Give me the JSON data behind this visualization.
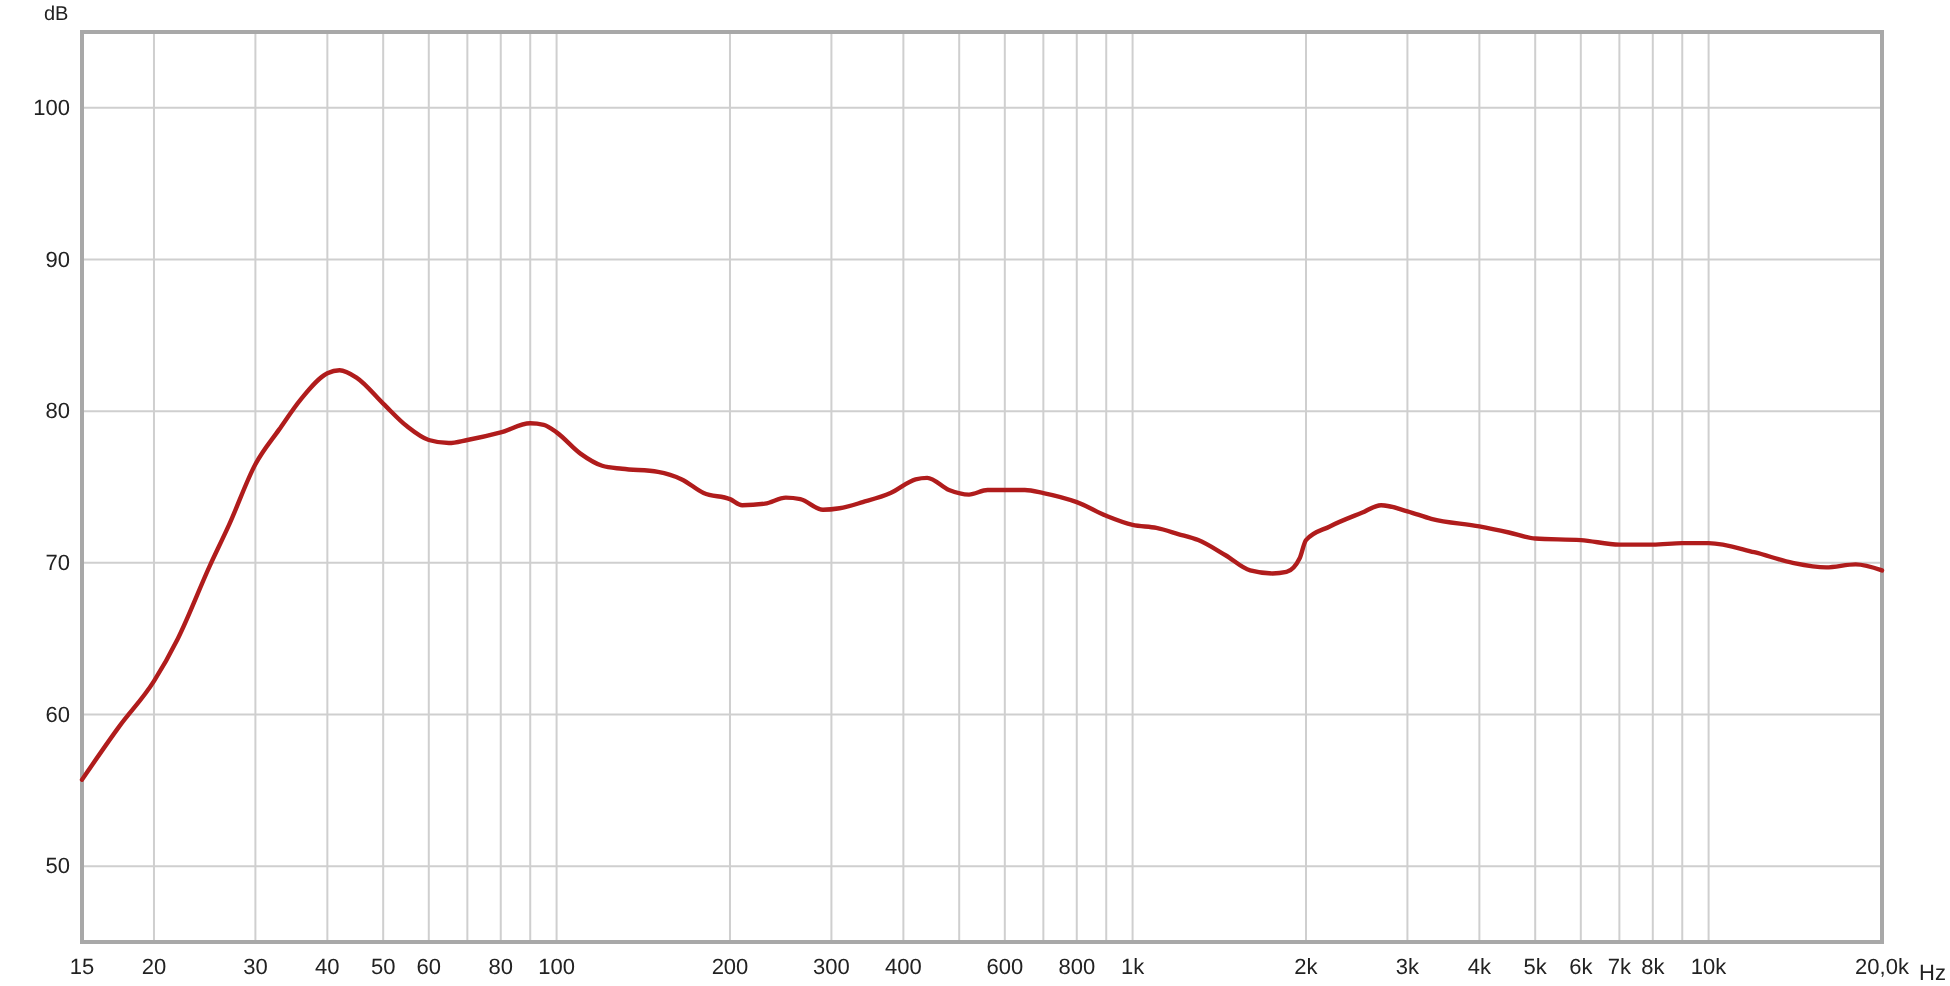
{
  "chart_data": {
    "type": "line",
    "ylabel": "dB",
    "xlabel": "Hz",
    "log": "x",
    "grid": true,
    "xlim": [
      15,
      20000
    ],
    "ylim": [
      45,
      105
    ],
    "xticks": [
      15,
      20,
      30,
      40,
      50,
      60,
      {
        "value": 70,
        "label": null
      },
      80,
      {
        "value": 90,
        "label": null
      },
      100,
      200,
      300,
      400,
      {
        "value": 500,
        "label": null
      },
      600,
      {
        "value": 700,
        "label": null
      },
      800,
      {
        "value": 900,
        "label": null
      },
      {
        "value": 1000,
        "label": "1k"
      },
      {
        "value": 2000,
        "label": "2k"
      },
      {
        "value": 3000,
        "label": "3k"
      },
      {
        "value": 4000,
        "label": "4k"
      },
      {
        "value": 5000,
        "label": "5k"
      },
      {
        "value": 6000,
        "label": "6k"
      },
      {
        "value": 7000,
        "label": "7k"
      },
      {
        "value": 8000,
        "label": "8k"
      },
      {
        "value": 9000,
        "label": null
      },
      {
        "value": 10000,
        "label": "10k"
      },
      {
        "value": 20000,
        "label": "20,0k"
      }
    ],
    "yticks": [
      50,
      60,
      70,
      80,
      90,
      100
    ],
    "series": [
      {
        "color": "#b01c1c",
        "x": [
          15,
          17.4,
          20,
          22,
          25,
          27,
          30,
          33,
          36,
          40,
          42,
          45,
          50,
          55,
          60,
          65,
          70,
          80,
          90,
          95,
          100,
          110,
          120,
          130,
          150,
          165,
          180,
          200,
          210,
          230,
          250,
          265,
          290,
          310,
          340,
          380,
          420,
          440,
          480,
          520,
          560,
          650,
          700,
          800,
          900,
          1000,
          1100,
          1200,
          1300,
          1450,
          1600,
          1750,
          1850,
          1950,
          2000,
          2200,
          2500,
          2700,
          3000,
          3300,
          4000,
          4500,
          5000,
          6000,
          7000,
          8000,
          9000,
          10000,
          12000,
          14000,
          16000,
          18000,
          20000
        ],
        "values": [
          55.7,
          59.2,
          62.2,
          65,
          69.8,
          72.5,
          76.5,
          78.8,
          80.8,
          82.5,
          82.7,
          82.2,
          80.5,
          79,
          78.1,
          77.9,
          78.1,
          78.6,
          79.2,
          79.1,
          78.6,
          77.2,
          76.4,
          76.2,
          76,
          75.5,
          74.6,
          74.2,
          73.8,
          73.9,
          74.3,
          74.2,
          73.5,
          73.6,
          74,
          74.6,
          75.5,
          75.6,
          74.8,
          74.5,
          74.8,
          74.8,
          74.6,
          74,
          73.1,
          72.5,
          72.3,
          71.9,
          71.5,
          70.5,
          69.5,
          69.3,
          69.4,
          70.3,
          71.5,
          72.4,
          73.3,
          73.8,
          73.4,
          72.9,
          72.4,
          72,
          71.6,
          71.5,
          71.2,
          71.2,
          71.3,
          71.3,
          70.7,
          70,
          69.7,
          69.9,
          69.5
        ]
      }
    ]
  }
}
